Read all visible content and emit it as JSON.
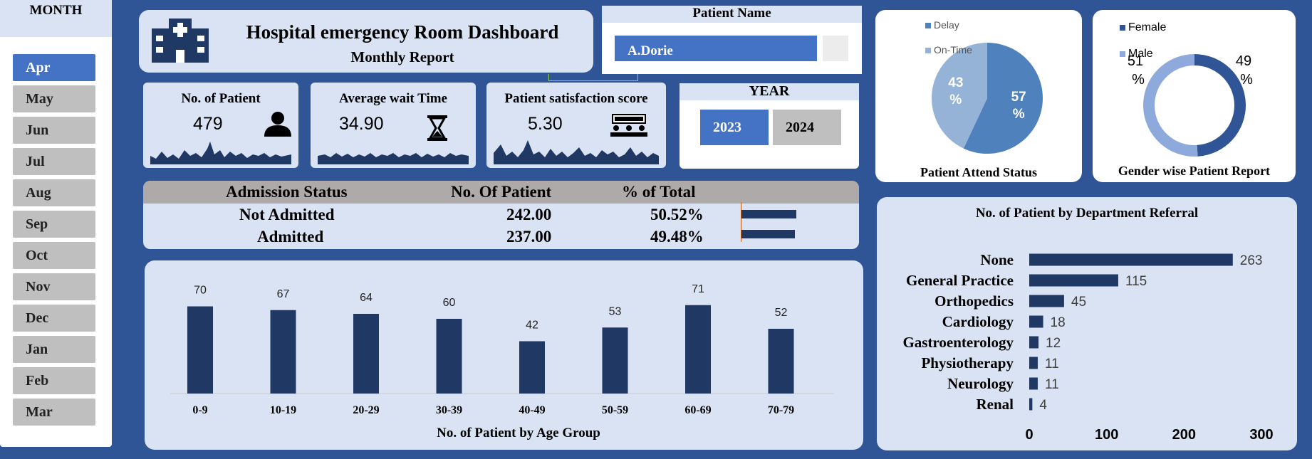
{
  "month_slicer": {
    "header": "MONTH",
    "months": [
      "Apr",
      "May",
      "Jun",
      "Jul",
      "Aug",
      "Sep",
      "Oct",
      "Nov",
      "Dec",
      "Jan",
      "Feb",
      "Mar"
    ],
    "selected": "Apr"
  },
  "title": {
    "main": "Hospital emergency Room Dashboard",
    "sub": "Monthly Report"
  },
  "patient_name": {
    "header": "Patient Name",
    "selected": "A.Dorie"
  },
  "kpis": {
    "patients": {
      "label": "No. of Patient",
      "value": "479",
      "icon": "person-icon"
    },
    "wait": {
      "label": "Average wait Time",
      "value": "34.90",
      "icon": "hourglass-icon"
    },
    "satisfaction": {
      "label": "Patient satisfaction score",
      "value": "5.30",
      "icon": "meeting-icon"
    }
  },
  "year_slicer": {
    "header": "YEAR",
    "years": [
      "2023",
      "2024"
    ],
    "selected": "2023"
  },
  "admission": {
    "headers": [
      "Admission Status",
      "No. Of Patient",
      "% of Total"
    ],
    "rows": [
      {
        "status": "Not Admitted",
        "count": "242.00",
        "pct": "50.52%",
        "fraction": 0.5052
      },
      {
        "status": "Admitted",
        "count": "237.00",
        "pct": "49.48%",
        "fraction": 0.4948
      }
    ]
  },
  "colors": {
    "background": "#2f5597",
    "card": "#dae3f3",
    "bar": "#203864",
    "accent": "#4472c4",
    "pie_dark": "#4f81bd",
    "pie_light": "#95b3d7",
    "donut_dark": "#2f5597",
    "donut_light": "#8ea9db"
  },
  "chart_data": [
    {
      "id": "age",
      "type": "bar",
      "title": "No. of Patient by Age Group",
      "categories": [
        "0-9",
        "10-19",
        "20-29",
        "30-39",
        "40-49",
        "50-59",
        "60-69",
        "70-79"
      ],
      "values": [
        70,
        67,
        64,
        60,
        42,
        53,
        71,
        52
      ],
      "ylim": [
        0,
        80
      ]
    },
    {
      "id": "attend",
      "type": "pie",
      "title": "Patient Attend Status",
      "slices": [
        {
          "name": "Delay",
          "value": 57,
          "label": "57 %"
        },
        {
          "name": "On-Time",
          "value": 43,
          "label": "43 %"
        }
      ]
    },
    {
      "id": "gender",
      "type": "pie",
      "title": "Gender wise Patient Report",
      "slices": [
        {
          "name": "Female",
          "value": 49,
          "label": "49 %"
        },
        {
          "name": "Male",
          "value": 51,
          "label": "51 %"
        }
      ]
    },
    {
      "id": "dept",
      "type": "bar",
      "orientation": "horizontal",
      "title": "No. of Patient by Department Referral",
      "categories": [
        "None",
        "General Practice",
        "Orthopedics",
        "Cardiology",
        "Gastroenterology",
        "Physiotherapy",
        "Neurology",
        "Renal"
      ],
      "values": [
        263,
        115,
        45,
        18,
        12,
        11,
        11,
        4
      ],
      "xlim": [
        0,
        300
      ],
      "xticks": [
        "0",
        "100",
        "200",
        "300"
      ]
    }
  ]
}
